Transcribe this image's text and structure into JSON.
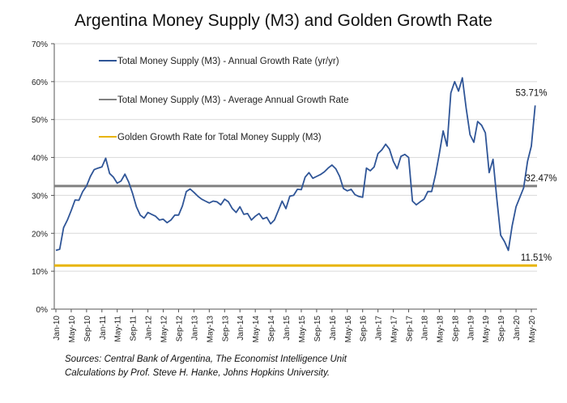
{
  "chart_data": {
    "type": "line",
    "title": "Argentina Money Supply (M3) and Golden Growth Rate",
    "xlabel": "",
    "ylabel": "",
    "ylim": [
      0,
      0.7
    ],
    "yticks": [
      "0%",
      "10%",
      "20%",
      "30%",
      "40%",
      "50%",
      "60%",
      "70%"
    ],
    "grid": true,
    "legend_position": "top-left",
    "x_start": "Jan-10",
    "xtick_labels": [
      "Jan-10",
      "May-10",
      "Sep-10",
      "Jan-11",
      "May-11",
      "Sep-11",
      "Jan-12",
      "May-12",
      "Sep-12",
      "Jan-13",
      "May-13",
      "Sep-13",
      "Jan-14",
      "May-14",
      "Sep-14",
      "Jan-15",
      "May-15",
      "Sep-15",
      "Jan-16",
      "May-16",
      "Sep-16",
      "Jan-17",
      "May-17",
      "Sep-17",
      "Jan-18",
      "May-18",
      "Sep-18",
      "Jan-19",
      "May-19",
      "Sep-19",
      "Jan-20",
      "May-20"
    ],
    "series": [
      {
        "name": "Total Money Supply (M3) - Annual Growth Rate (yr/yr)",
        "color": "#2f5597",
        "values": [
          0.155,
          0.158,
          0.215,
          0.235,
          0.26,
          0.288,
          0.287,
          0.31,
          0.325,
          0.35,
          0.368,
          0.372,
          0.375,
          0.398,
          0.358,
          0.348,
          0.332,
          0.338,
          0.356,
          0.335,
          0.305,
          0.27,
          0.248,
          0.24,
          0.255,
          0.25,
          0.245,
          0.235,
          0.237,
          0.228,
          0.235,
          0.248,
          0.248,
          0.272,
          0.31,
          0.317,
          0.308,
          0.298,
          0.29,
          0.285,
          0.28,
          0.285,
          0.283,
          0.275,
          0.29,
          0.283,
          0.265,
          0.255,
          0.27,
          0.25,
          0.252,
          0.235,
          0.245,
          0.252,
          0.238,
          0.242,
          0.225,
          0.235,
          0.26,
          0.285,
          0.265,
          0.298,
          0.3,
          0.316,
          0.315,
          0.348,
          0.36,
          0.345,
          0.35,
          0.355,
          0.362,
          0.372,
          0.38,
          0.37,
          0.35,
          0.318,
          0.312,
          0.316,
          0.302,
          0.297,
          0.295,
          0.372,
          0.365,
          0.375,
          0.41,
          0.42,
          0.435,
          0.422,
          0.39,
          0.37,
          0.403,
          0.408,
          0.4,
          0.285,
          0.275,
          0.283,
          0.29,
          0.31,
          0.31,
          0.355,
          0.41,
          0.47,
          0.43,
          0.57,
          0.6,
          0.575,
          0.61,
          0.53,
          0.46,
          0.44,
          0.495,
          0.485,
          0.465,
          0.36,
          0.395,
          0.29,
          0.195,
          0.178,
          0.155,
          0.22,
          0.27,
          0.295,
          0.32,
          0.39,
          0.43,
          0.5371
        ]
      },
      {
        "name": "Total Money Supply (M3) - Average Annual Growth Rate",
        "color": "#808080",
        "constant": 0.3247,
        "label": "32.47%"
      },
      {
        "name": "Golden Growth Rate for Total Money Supply (M3)",
        "color": "#e8b400",
        "constant": 0.1151,
        "label": "11.51%"
      }
    ],
    "annotations": [
      "53.71%",
      "32.47%",
      "11.51%"
    ],
    "sources": [
      "Sources: Central Bank of Argentina, The Economist Intelligence Unit",
      "Calculations by Prof. Steve H. Hanke, Johns Hopkins University."
    ]
  }
}
